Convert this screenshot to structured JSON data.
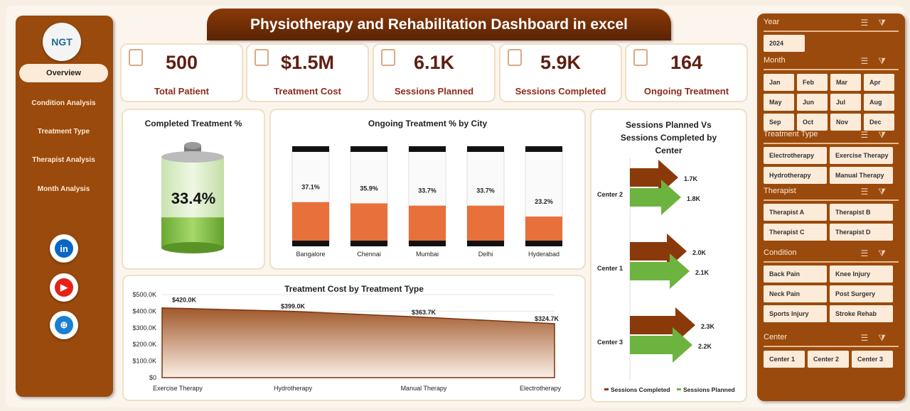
{
  "title": "Physiotherapy and Rehabilitation Dashboard in excel",
  "logo_text": "NGT",
  "sidebar": {
    "items": [
      {
        "label": "Overview",
        "active": true
      },
      {
        "label": "Condition Analysis"
      },
      {
        "label": "Treatment Type"
      },
      {
        "label": "Therapist Analysis"
      },
      {
        "label": "Month Analysis"
      }
    ],
    "social": [
      {
        "icon": "linkedin-icon",
        "glyph": "in",
        "color": "#0a66c2"
      },
      {
        "icon": "youtube-icon",
        "glyph": "▶",
        "color": "#e62117"
      },
      {
        "icon": "globe-icon",
        "glyph": "⊕",
        "color": "#1a7fd1"
      }
    ]
  },
  "kpis": [
    {
      "value": "500",
      "label": "Total Patient"
    },
    {
      "value": "$1.5M",
      "label": "Treatment Cost"
    },
    {
      "value": "6.1K",
      "label": "Sessions Planned"
    },
    {
      "value": "5.9K",
      "label": "Sessions Completed"
    },
    {
      "value": "164",
      "label": "Ongoing Treatment"
    }
  ],
  "completed": {
    "title": "Completed Treatment %",
    "value": "33.4%",
    "percent": 33.4
  },
  "chart_data": [
    {
      "type": "bar",
      "title": "Ongoing Treatment % by City",
      "categories": [
        "Bangalore",
        "Chennai",
        "Mumbai",
        "Delhi",
        "Hyderabad"
      ],
      "values": [
        37.1,
        35.9,
        33.7,
        33.7,
        23.2
      ],
      "labels": [
        "37.1%",
        "35.9%",
        "33.7%",
        "33.7%",
        "23.2%"
      ],
      "ylim": [
        0,
        100
      ],
      "colors": {
        "fill": "#e8703a"
      }
    },
    {
      "type": "bar",
      "orientation": "horizontal",
      "title": "Sessions Planned Vs Sessions Completed by Center",
      "categories": [
        "Center 2",
        "Center 1",
        "Center 3"
      ],
      "series": [
        {
          "name": "Sessions Completed",
          "values": [
            1.7,
            2.0,
            2.3
          ],
          "labels": [
            "1.7K",
            "2.0K",
            "2.3K"
          ],
          "color": "#8a3a0a"
        },
        {
          "name": "Sessions Planned",
          "values": [
            1.8,
            2.1,
            2.2
          ],
          "labels": [
            "1.8K",
            "2.1K",
            "2.2K"
          ],
          "color": "#6db33f"
        }
      ],
      "legend": "bottom"
    },
    {
      "type": "area",
      "title": "Treatment Cost by Treatment Type",
      "categories": [
        "Exercise Therapy",
        "Hydrotherapy",
        "Manual Therapy",
        "Electrotherapy"
      ],
      "values": [
        420.0,
        399.0,
        363.7,
        324.7
      ],
      "labels": [
        "$420.0K",
        "$399.0K",
        "$363.7K",
        "$324.7K"
      ],
      "ylim": [
        0,
        500
      ],
      "yticks": [
        "$0",
        "$100.0K",
        "$200.0K",
        "$300.0K",
        "$400.0K",
        "$500.0K"
      ],
      "grid": true
    }
  ],
  "slicers": {
    "year": {
      "title": "Year",
      "items": [
        "2024"
      ]
    },
    "month": {
      "title": "Month",
      "items": [
        "Jan",
        "Feb",
        "Mar",
        "Apr",
        "May",
        "Jun",
        "Jul",
        "Aug",
        "Sep",
        "Oct",
        "Nov",
        "Dec"
      ]
    },
    "treatment": {
      "title": "Treatment Type",
      "items": [
        "Electrotherapy",
        "Exercise Therapy",
        "Hydrotherapy",
        "Manual Therapy"
      ]
    },
    "therapist": {
      "title": "Therapist",
      "items": [
        "Therapist A",
        "Therapist B",
        "Therapist C",
        "Therapist D"
      ]
    },
    "condition": {
      "title": "Condition",
      "items": [
        "Back Pain",
        "Knee Injury",
        "Neck Pain",
        "Post Surgery",
        "Sports Injury",
        "Stroke Rehab"
      ]
    },
    "center": {
      "title": "Center",
      "items": [
        "Center 1",
        "Center 2",
        "Center 3"
      ]
    }
  }
}
